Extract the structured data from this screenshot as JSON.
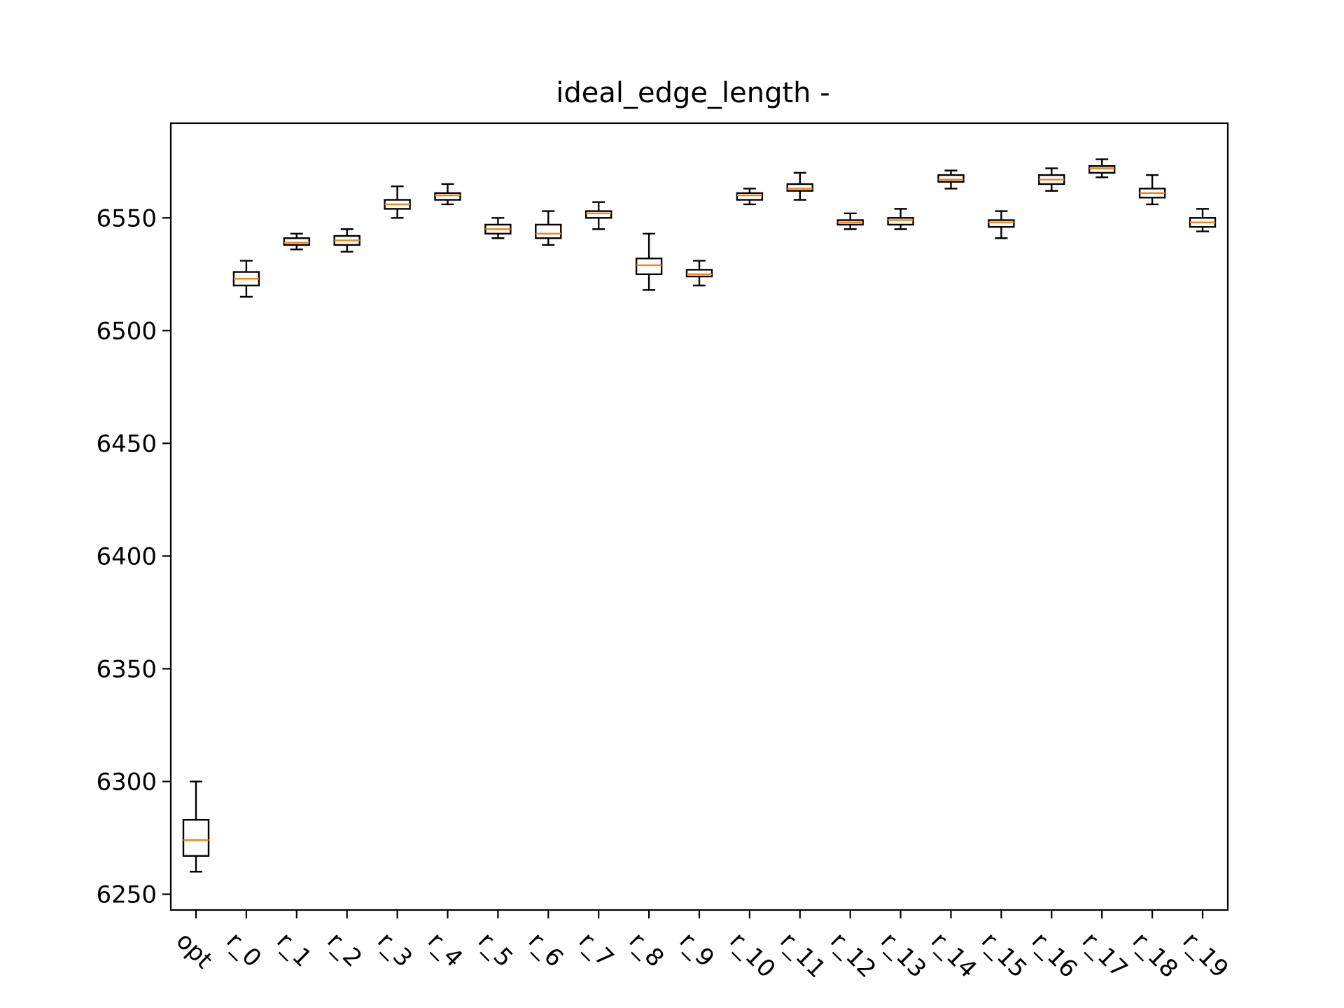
{
  "chart_data": {
    "type": "box",
    "title": "ideal_edge_length -",
    "xlabel": "",
    "ylabel": "",
    "ylim": [
      6243,
      6592
    ],
    "yticks": [
      6250,
      6300,
      6350,
      6400,
      6450,
      6500,
      6550
    ],
    "ytick_labels": [
      "6250",
      "6300",
      "6350",
      "6400",
      "6450",
      "6500",
      "6550"
    ],
    "grid": false,
    "colors": {
      "box": "#000000",
      "median": "#ff7f0e",
      "axes": "#000000"
    },
    "categories": [
      "opt",
      "r_0",
      "r_1",
      "r_2",
      "r_3",
      "r_4",
      "r_5",
      "r_6",
      "r_7",
      "r_8",
      "r_9",
      "r_10",
      "r_11",
      "r_12",
      "r_13",
      "r_14",
      "r_15",
      "r_16",
      "r_17",
      "r_18",
      "r_19"
    ],
    "boxes": [
      {
        "label": "opt",
        "whislo": 6260,
        "q1": 6267,
        "med": 6274,
        "q3": 6283,
        "whishi": 6300
      },
      {
        "label": "r_0",
        "whislo": 6515,
        "q1": 6520,
        "med": 6523,
        "q3": 6526,
        "whishi": 6531
      },
      {
        "label": "r_1",
        "whislo": 6536,
        "q1": 6538,
        "med": 6539,
        "q3": 6541,
        "whishi": 6543
      },
      {
        "label": "r_2",
        "whislo": 6535,
        "q1": 6538,
        "med": 6540,
        "q3": 6542,
        "whishi": 6545
      },
      {
        "label": "r_3",
        "whislo": 6550,
        "q1": 6554,
        "med": 6556,
        "q3": 6558,
        "whishi": 6564
      },
      {
        "label": "r_4",
        "whislo": 6556,
        "q1": 6558,
        "med": 6560,
        "q3": 6561,
        "whishi": 6565
      },
      {
        "label": "r_5",
        "whislo": 6541,
        "q1": 6543,
        "med": 6545,
        "q3": 6547,
        "whishi": 6550
      },
      {
        "label": "r_6",
        "whislo": 6538,
        "q1": 6541,
        "med": 6543,
        "q3": 6547,
        "whishi": 6553
      },
      {
        "label": "r_7",
        "whislo": 6545,
        "q1": 6550,
        "med": 6552,
        "q3": 6553,
        "whishi": 6557
      },
      {
        "label": "r_8",
        "whislo": 6518,
        "q1": 6525,
        "med": 6529,
        "q3": 6532,
        "whishi": 6543
      },
      {
        "label": "r_9",
        "whislo": 6520,
        "q1": 6524,
        "med": 6525,
        "q3": 6527,
        "whishi": 6531
      },
      {
        "label": "r_10",
        "whislo": 6556,
        "q1": 6558,
        "med": 6560,
        "q3": 6561,
        "whishi": 6563
      },
      {
        "label": "r_11",
        "whislo": 6558,
        "q1": 6562,
        "med": 6563,
        "q3": 6565,
        "whishi": 6570
      },
      {
        "label": "r_12",
        "whislo": 6545,
        "q1": 6547,
        "med": 6548,
        "q3": 6549,
        "whishi": 6552
      },
      {
        "label": "r_13",
        "whislo": 6545,
        "q1": 6547,
        "med": 6549,
        "q3": 6550,
        "whishi": 6554
      },
      {
        "label": "r_14",
        "whislo": 6563,
        "q1": 6566,
        "med": 6567,
        "q3": 6569,
        "whishi": 6571
      },
      {
        "label": "r_15",
        "whislo": 6541,
        "q1": 6546,
        "med": 6548,
        "q3": 6549,
        "whishi": 6553
      },
      {
        "label": "r_16",
        "whislo": 6562,
        "q1": 6565,
        "med": 6567,
        "q3": 6569,
        "whishi": 6572
      },
      {
        "label": "r_17",
        "whislo": 6568,
        "q1": 6570,
        "med": 6572,
        "q3": 6573,
        "whishi": 6576
      },
      {
        "label": "r_18",
        "whislo": 6556,
        "q1": 6559,
        "med": 6561,
        "q3": 6563,
        "whishi": 6569
      },
      {
        "label": "r_19",
        "whislo": 6544,
        "q1": 6546,
        "med": 6548,
        "q3": 6550,
        "whishi": 6554
      }
    ]
  }
}
